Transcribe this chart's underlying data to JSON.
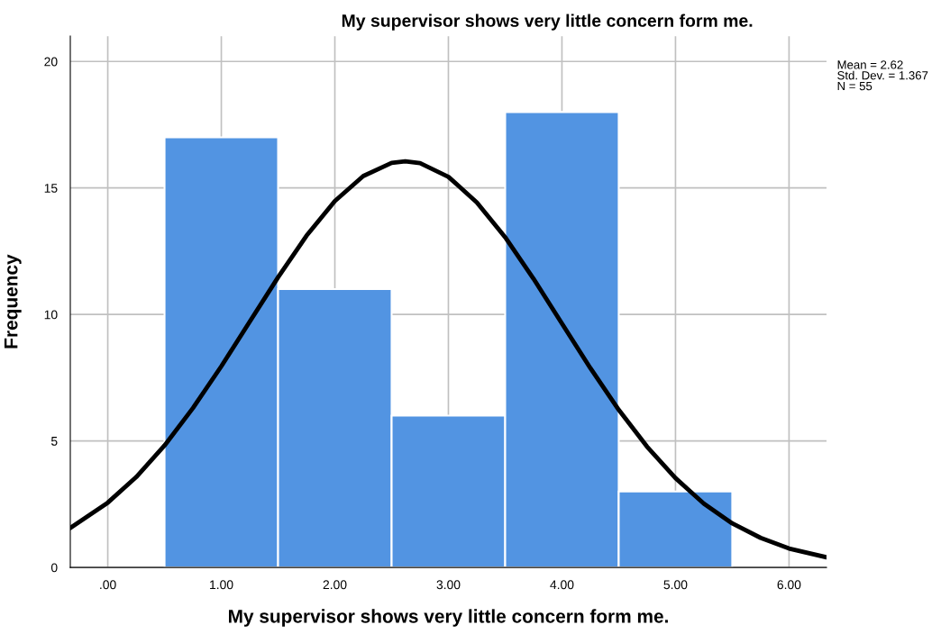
{
  "chart_data": {
    "type": "histogram",
    "title": "My supervisor shows very little concern form me.",
    "xlabel": "My supervisor shows very little concern form me.",
    "ylabel": "Frequency",
    "bins": [
      0.5,
      1.5,
      2.5,
      3.5,
      4.5,
      5.5
    ],
    "series": [
      {
        "color": "#5294e2",
        "values": [
          17,
          11,
          6,
          18,
          3
        ]
      },
      {
        "type": "line",
        "color": "#000000",
        "x": [
          -0.33,
          0,
          0.25,
          0.5,
          0.75,
          1.0,
          1.25,
          1.5,
          1.75,
          2.0,
          2.25,
          2.5,
          2.62,
          2.75,
          3.0,
          3.25,
          3.5,
          3.75,
          4.0,
          4.25,
          4.5,
          4.75,
          5.0,
          5.25,
          5.5,
          5.75,
          6.0,
          6.33
        ],
        "values": [
          1.56,
          2.56,
          3.57,
          4.82,
          6.3,
          7.95,
          9.71,
          11.47,
          13.11,
          14.48,
          15.47,
          15.99,
          16.05,
          15.98,
          15.44,
          14.43,
          13.05,
          11.41,
          9.64,
          7.88,
          6.23,
          4.77,
          3.53,
          2.52,
          1.74,
          1.17,
          0.75,
          0.4
        ]
      }
    ],
    "xlim": [
      -0.33,
      6.33
    ],
    "ylim": [
      0,
      21
    ],
    "xticks": [
      {
        "value": 0,
        "label": ".00"
      },
      {
        "value": 1,
        "label": "1.00"
      },
      {
        "value": 2,
        "label": "2.00"
      },
      {
        "value": 3,
        "label": "3.00"
      },
      {
        "value": 4,
        "label": "4.00"
      },
      {
        "value": 5,
        "label": "5.00"
      },
      {
        "value": 6,
        "label": "6.00"
      }
    ],
    "yticks": [
      0,
      5,
      10,
      15,
      20
    ],
    "grid": true,
    "annotations": [
      "Mean = 2.62\nStd. Dev. = 1.367\nN = 55"
    ]
  }
}
